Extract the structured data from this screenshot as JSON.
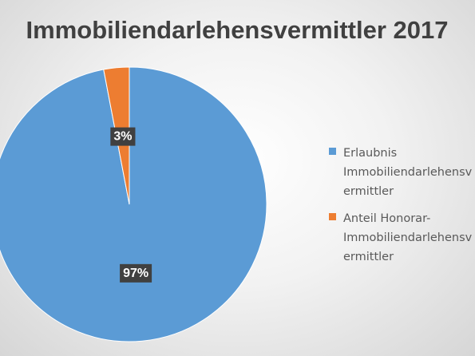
{
  "chart_data": {
    "type": "pie",
    "title": "Immobiliendarlehensvermittler 2017",
    "categories": [
      "Erlaubnis Immobiliendarlehensvermittler",
      "Anteil Honorar-Immobiliendarlehensvermittler"
    ],
    "values": [
      97,
      3
    ],
    "value_labels": [
      "97%",
      "3%"
    ],
    "colors": [
      "#5b9bd5",
      "#ed7d31"
    ],
    "legend": "right"
  }
}
